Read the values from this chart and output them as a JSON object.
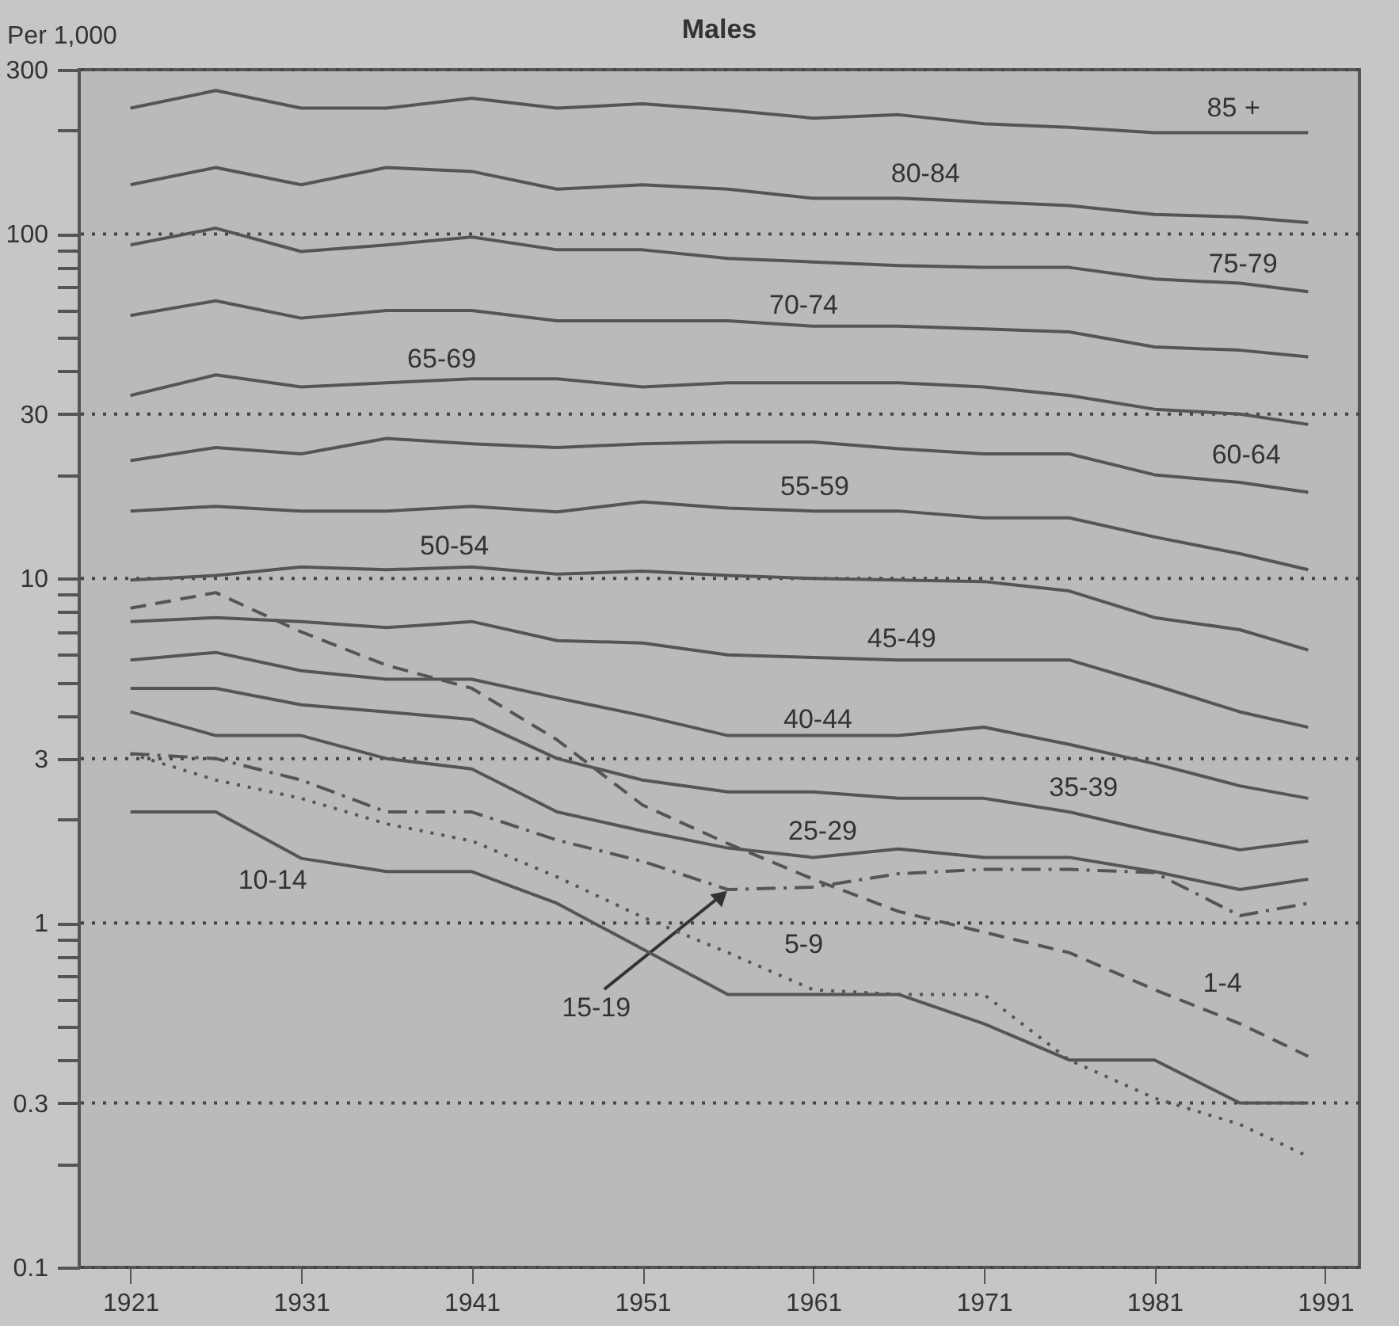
{
  "chart_data": {
    "type": "line",
    "title": "Males",
    "ylabel": "Per 1,000",
    "x": [
      1921,
      1926,
      1931,
      1936,
      1941,
      1946,
      1951,
      1956,
      1961,
      1966,
      1971,
      1976,
      1981,
      1986,
      1990
    ],
    "series": [
      {
        "name": "85 +",
        "color": "#555555",
        "values": [
          232,
          261,
          232,
          232,
          248,
          232,
          239,
          229,
          217,
          222,
          209,
          204,
          197,
          197,
          197
        ]
      },
      {
        "name": "80-84",
        "color": "#555555",
        "values": [
          139,
          156,
          139,
          156,
          152,
          135,
          139,
          135,
          127,
          127,
          124,
          121,
          114,
          112,
          108
        ]
      },
      {
        "name": "75-79",
        "color": "#555555",
        "values": [
          93,
          104,
          89,
          93,
          98,
          90,
          90,
          85,
          83,
          81,
          80,
          80,
          74,
          72,
          68
        ]
      },
      {
        "name": "70-74",
        "color": "#555555",
        "values": [
          58,
          64,
          57,
          60,
          60,
          56,
          56,
          56,
          54,
          54,
          53,
          52,
          47,
          46,
          44
        ]
      },
      {
        "name": "65-69",
        "color": "#555555",
        "values": [
          34,
          39,
          36,
          37,
          38,
          38,
          36,
          37,
          37,
          37,
          36,
          34,
          31,
          30,
          28
        ]
      },
      {
        "name": "60-64",
        "color": "#555555",
        "values": [
          22,
          24,
          23,
          25.5,
          24.6,
          24,
          24.6,
          24.9,
          24.9,
          23.8,
          23,
          23,
          20,
          19,
          17.8
        ]
      },
      {
        "name": "55-59",
        "color": "#555555",
        "values": [
          15.7,
          16.2,
          15.7,
          15.7,
          16.2,
          15.6,
          16.7,
          16,
          15.7,
          15.7,
          15,
          15,
          13.2,
          11.8,
          10.6
        ]
      },
      {
        "name": "50-54",
        "color": "#555555",
        "values": [
          9.9,
          10.2,
          10.8,
          10.6,
          10.8,
          10.3,
          10.5,
          10.2,
          10,
          9.9,
          9.8,
          9.2,
          7.7,
          7.1,
          6.2
        ]
      },
      {
        "name": "45-49",
        "color": "#555555",
        "values": [
          7.5,
          7.7,
          7.5,
          7.2,
          7.5,
          6.6,
          6.5,
          6.0,
          5.9,
          5.8,
          5.8,
          5.8,
          4.9,
          4.1,
          3.7
        ]
      },
      {
        "name": "40-44",
        "color": "#555555",
        "values": [
          5.8,
          6.1,
          5.4,
          5.1,
          5.1,
          4.5,
          4.0,
          3.5,
          3.5,
          3.5,
          3.7,
          3.3,
          2.9,
          2.5,
          2.3
        ]
      },
      {
        "name": "35-39",
        "color": "#555555",
        "values": [
          4.8,
          4.8,
          4.3,
          4.1,
          3.9,
          3.0,
          2.6,
          2.4,
          2.4,
          2.3,
          2.3,
          2.1,
          1.84,
          1.63,
          1.73
        ]
      },
      {
        "name": "25-29",
        "color": "#555555",
        "values": [
          4.1,
          3.5,
          3.5,
          3.0,
          2.8,
          2.1,
          1.85,
          1.65,
          1.55,
          1.64,
          1.55,
          1.55,
          1.41,
          1.25,
          1.34
        ]
      },
      {
        "name": "15-19",
        "color": "#555555",
        "line_style": "dashdot",
        "values": [
          3.1,
          3.0,
          2.6,
          2.1,
          2.1,
          1.74,
          1.51,
          1.25,
          1.27,
          1.39,
          1.43,
          1.43,
          1.4,
          1.05,
          1.14
        ]
      },
      {
        "name": "10-14",
        "color": "#555555",
        "values": [
          2.1,
          2.1,
          1.54,
          1.41,
          1.41,
          1.14,
          0.84,
          0.62,
          0.62,
          0.62,
          0.51,
          0.4,
          0.4,
          0.3,
          0.3
        ]
      },
      {
        "name": "5-9",
        "color": "#555555",
        "line_style": "dotted",
        "values": [
          3.1,
          2.6,
          2.3,
          1.94,
          1.73,
          1.36,
          1.04,
          0.82,
          0.64,
          0.62,
          0.62,
          0.4,
          0.31,
          0.26,
          0.21
        ]
      },
      {
        "name": "1-4",
        "color": "#555555",
        "line_style": "dashed",
        "values": [
          8.2,
          9.1,
          7.0,
          5.6,
          4.8,
          3.4,
          2.2,
          1.7,
          1.34,
          1.08,
          0.94,
          0.82,
          0.64,
          0.51,
          0.41
        ]
      }
    ],
    "log": "y",
    "xlim": [
      1918,
      1993
    ],
    "xticks": [
      1921,
      1931,
      1941,
      1951,
      1961,
      1971,
      1981,
      1991
    ],
    "ylim": [
      0.1,
      300
    ],
    "yticks": [
      0.1,
      {
        "value": 0.2,
        "label": null
      },
      0.3,
      {
        "value": 0.4,
        "label": null
      },
      {
        "value": 0.5,
        "label": null
      },
      {
        "value": 0.6,
        "label": null
      },
      {
        "value": 0.7,
        "label": null
      },
      {
        "value": 0.8,
        "label": null
      },
      {
        "value": 0.9,
        "label": null
      },
      1,
      {
        "value": 2,
        "label": null
      },
      3,
      {
        "value": 4,
        "label": null
      },
      {
        "value": 5,
        "label": null
      },
      {
        "value": 6,
        "label": null
      },
      {
        "value": 7,
        "label": null
      },
      {
        "value": 8,
        "label": null
      },
      {
        "value": 9,
        "label": null
      },
      10,
      {
        "value": 20,
        "label": null
      },
      30,
      {
        "value": 40,
        "label": null
      },
      {
        "value": 50,
        "label": null
      },
      {
        "value": 60,
        "label": null
      },
      {
        "value": 70,
        "label": null
      },
      {
        "value": 80,
        "label": null
      },
      {
        "value": 90,
        "label": null
      },
      100,
      {
        "value": 200,
        "label": null
      },
      300
    ],
    "grid": "y",
    "marker": "none",
    "line_style": "solid"
  }
}
